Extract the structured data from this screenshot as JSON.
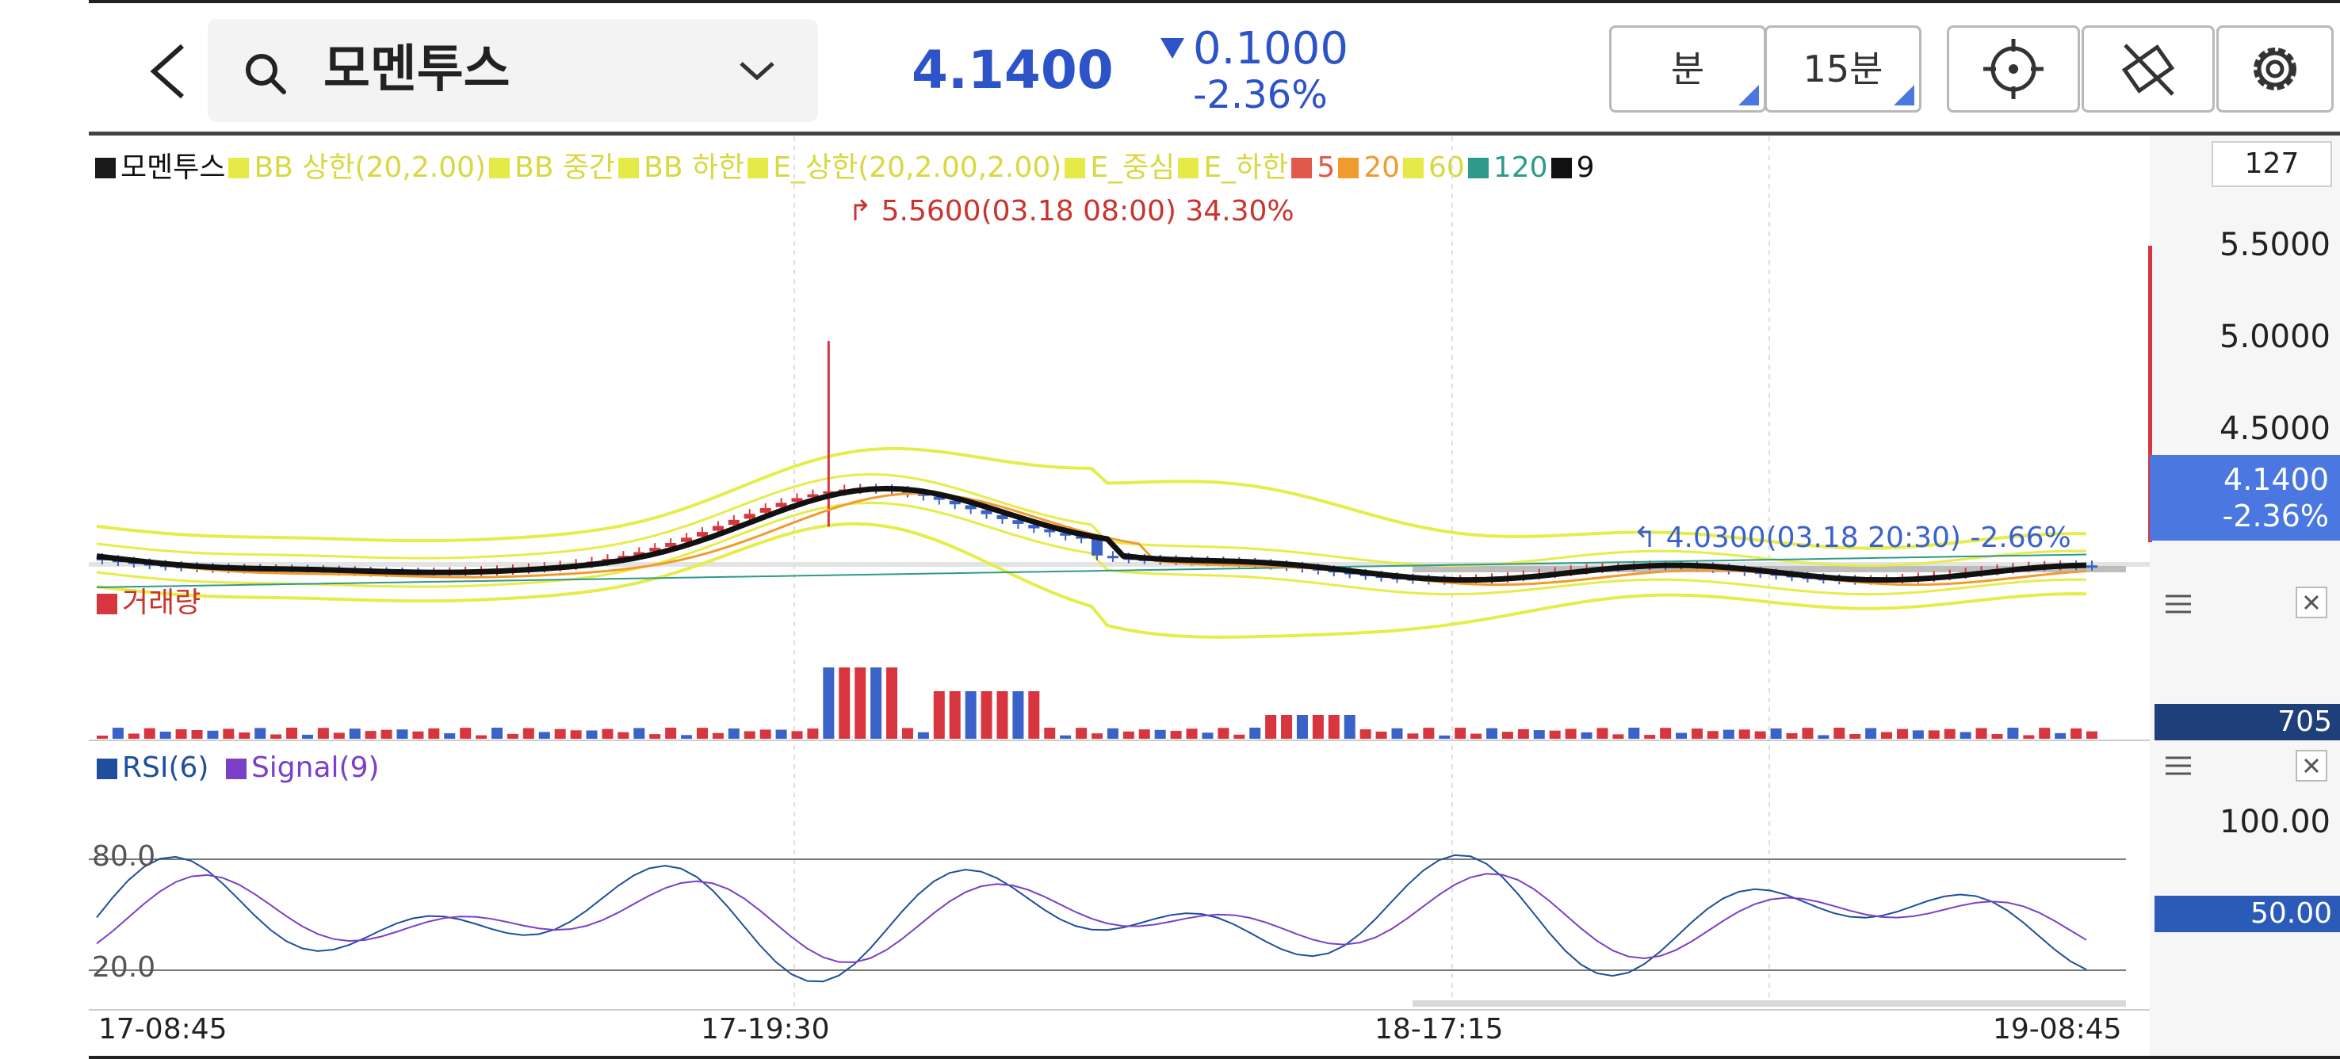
{
  "header": {
    "back_label": "<",
    "stock_name": "모멘투스",
    "price": "4.1400",
    "change_abs": "0.1000",
    "change_pct": "-2.36%",
    "unit_button": "분",
    "period_button": "15분",
    "icons": [
      "back-icon",
      "search-icon",
      "chevron-down-icon",
      "crosshair-icon",
      "draw-off-icon",
      "gear-icon"
    ]
  },
  "legend": {
    "items": [
      {
        "label": "모멘투스",
        "color": "#1a1a1a"
      },
      {
        "label": "BB 상한(20,2.00)",
        "color": "#e5ea46"
      },
      {
        "label": "BB 중간",
        "color": "#e5ea46"
      },
      {
        "label": "BB 하한",
        "color": "#e5ea46"
      },
      {
        "label": "E_상한(20,2.00,2.00)",
        "color": "#e5ea46"
      },
      {
        "label": "E_중심",
        "color": "#e5ea46"
      },
      {
        "label": "E_하한",
        "color": "#e5ea46"
      },
      {
        "label": "5",
        "color": "#e0594c"
      },
      {
        "label": "20",
        "color": "#f19a2e"
      },
      {
        "label": "60",
        "color": "#e5ea46"
      },
      {
        "label": "120",
        "color": "#2e9a8a"
      },
      {
        "label": "9",
        "color": "#111111"
      }
    ]
  },
  "annotations": {
    "high": "5.5600(03.18 08:00) 34.30%",
    "low": "4.0300(03.18 20:30) -2.66%"
  },
  "axis": {
    "count": "127",
    "ticks": [
      "5.5000",
      "5.0000",
      "4.5000"
    ],
    "price_tag_value": "4.1400",
    "price_tag_pct": "-2.36%"
  },
  "volume_panel": {
    "title": "거래량",
    "tag": "705",
    "color": "#d8363e"
  },
  "rsi_panel": {
    "title_rsi": "RSI(6)",
    "title_signal": "Signal(9)",
    "level_high": "80.0",
    "level_low": "20.0",
    "axis_top": "100.00",
    "tag": "50.00",
    "rsi_color": "#1f4e9c",
    "signal_color": "#7b3fc8"
  },
  "x_labels": [
    "17-08:45",
    "17-19:30",
    "18-17:15",
    "19-08:45"
  ],
  "colors": {
    "up": "#d8363e",
    "down": "#3a62c9",
    "accent": "#4a78e0"
  }
}
